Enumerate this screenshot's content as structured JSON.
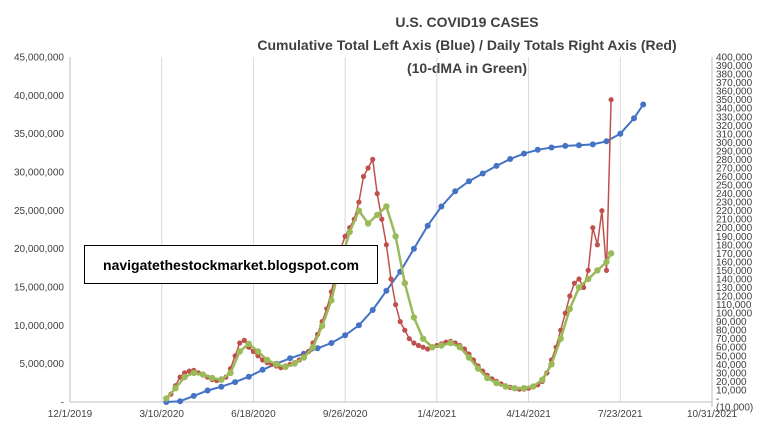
{
  "chart_data": {
    "type": "line",
    "title": "U.S. COVID19 CASES",
    "subtitle": "Cumulative Total Left Axis (Blue) / Daily Totals Right Axis (Red)",
    "subtitle2": "(10-dMA in Green)",
    "watermark": "navigatethestockmarket.blogspot.com",
    "x_ticks": [
      "12/1/2019",
      "3/10/2020",
      "6/18/2020",
      "9/26/2020",
      "1/4/2021",
      "4/14/2021",
      "7/23/2021",
      "10/31/2021"
    ],
    "y_left_ticks": [
      "-",
      "5,000,000",
      "10,000,000",
      "15,000,000",
      "20,000,000",
      "25,000,000",
      "30,000,000",
      "35,000,000",
      "40,000,000",
      "45,000,000"
    ],
    "y_right_ticks": [
      "(10,000)",
      "-",
      "10,000",
      "20,000",
      "30,000",
      "40,000",
      "50,000",
      "60,000",
      "70,000",
      "80,000",
      "90,000",
      "100,000",
      "110,000",
      "120,000",
      "130,000",
      "140,000",
      "150,000",
      "160,000",
      "170,000",
      "180,000",
      "190,000",
      "200,000",
      "210,000",
      "220,000",
      "230,000",
      "240,000",
      "250,000",
      "260,000",
      "270,000",
      "280,000",
      "290,000",
      "300,000",
      "310,000",
      "320,000",
      "330,000",
      "340,000",
      "350,000",
      "360,000",
      "370,000",
      "380,000",
      "390,000",
      "400,000"
    ],
    "ylim_left": [
      0,
      45000000
    ],
    "ylim_right": [
      -10000,
      400000
    ],
    "x_range_days": [
      0,
      700
    ],
    "grid": "vertical",
    "series": [
      {
        "color": "#4472C4",
        "axis": "left",
        "points": [
          [
            105,
            0
          ],
          [
            120,
            100000
          ],
          [
            135,
            800000
          ],
          [
            150,
            1500000
          ],
          [
            165,
            2000000
          ],
          [
            180,
            2600000
          ],
          [
            195,
            3300000
          ],
          [
            210,
            4200000
          ],
          [
            225,
            5000000
          ],
          [
            240,
            5700000
          ],
          [
            255,
            6300000
          ],
          [
            270,
            7000000
          ],
          [
            285,
            7700000
          ],
          [
            300,
            8700000
          ],
          [
            315,
            10000000
          ],
          [
            330,
            12000000
          ],
          [
            345,
            14500000
          ],
          [
            360,
            17000000
          ],
          [
            375,
            20000000
          ],
          [
            390,
            23000000
          ],
          [
            405,
            25500000
          ],
          [
            420,
            27500000
          ],
          [
            435,
            28800000
          ],
          [
            450,
            29800000
          ],
          [
            465,
            30800000
          ],
          [
            480,
            31700000
          ],
          [
            495,
            32400000
          ],
          [
            510,
            32900000
          ],
          [
            525,
            33200000
          ],
          [
            540,
            33400000
          ],
          [
            555,
            33500000
          ],
          [
            570,
            33600000
          ],
          [
            585,
            34000000
          ],
          [
            600,
            35000000
          ],
          [
            615,
            37000000
          ],
          [
            625,
            38800000
          ]
        ]
      },
      {
        "color": "#C0504D",
        "axis": "right",
        "points": [
          [
            105,
            0
          ],
          [
            110,
            5000
          ],
          [
            115,
            15000
          ],
          [
            120,
            25000
          ],
          [
            125,
            30000
          ],
          [
            130,
            32000
          ],
          [
            135,
            33000
          ],
          [
            140,
            30000
          ],
          [
            145,
            28000
          ],
          [
            150,
            25000
          ],
          [
            155,
            22000
          ],
          [
            160,
            21000
          ],
          [
            165,
            23000
          ],
          [
            170,
            25000
          ],
          [
            175,
            35000
          ],
          [
            180,
            50000
          ],
          [
            185,
            65000
          ],
          [
            190,
            68000
          ],
          [
            195,
            60000
          ],
          [
            200,
            55000
          ],
          [
            205,
            50000
          ],
          [
            210,
            45000
          ],
          [
            215,
            42000
          ],
          [
            220,
            40000
          ],
          [
            225,
            38000
          ],
          [
            230,
            36000
          ],
          [
            235,
            38000
          ],
          [
            240,
            40000
          ],
          [
            245,
            42000
          ],
          [
            250,
            45000
          ],
          [
            255,
            50000
          ],
          [
            260,
            55000
          ],
          [
            265,
            65000
          ],
          [
            270,
            75000
          ],
          [
            275,
            90000
          ],
          [
            280,
            105000
          ],
          [
            285,
            125000
          ],
          [
            290,
            150000
          ],
          [
            295,
            175000
          ],
          [
            300,
            190000
          ],
          [
            305,
            200000
          ],
          [
            310,
            210000
          ],
          [
            315,
            230000
          ],
          [
            320,
            260000
          ],
          [
            325,
            270000
          ],
          [
            330,
            280000
          ],
          [
            335,
            240000
          ],
          [
            340,
            210000
          ],
          [
            345,
            180000
          ],
          [
            350,
            140000
          ],
          [
            355,
            110000
          ],
          [
            360,
            90000
          ],
          [
            365,
            80000
          ],
          [
            370,
            70000
          ],
          [
            375,
            65000
          ],
          [
            380,
            62000
          ],
          [
            385,
            60000
          ],
          [
            390,
            58000
          ],
          [
            395,
            60000
          ],
          [
            400,
            62000
          ],
          [
            405,
            64000
          ],
          [
            410,
            66000
          ],
          [
            415,
            67000
          ],
          [
            420,
            65000
          ],
          [
            425,
            62000
          ],
          [
            430,
            58000
          ],
          [
            435,
            52000
          ],
          [
            440,
            45000
          ],
          [
            445,
            38000
          ],
          [
            450,
            32000
          ],
          [
            455,
            27000
          ],
          [
            460,
            23000
          ],
          [
            465,
            20000
          ],
          [
            470,
            17000
          ],
          [
            475,
            15000
          ],
          [
            480,
            13000
          ],
          [
            485,
            12000
          ],
          [
            490,
            11000
          ],
          [
            495,
            11000
          ],
          [
            500,
            12000
          ],
          [
            505,
            14000
          ],
          [
            510,
            16000
          ],
          [
            515,
            20000
          ],
          [
            520,
            30000
          ],
          [
            525,
            45000
          ],
          [
            530,
            60000
          ],
          [
            535,
            80000
          ],
          [
            540,
            100000
          ],
          [
            545,
            120000
          ],
          [
            550,
            135000
          ],
          [
            555,
            140000
          ],
          [
            560,
            130000
          ],
          [
            565,
            150000
          ],
          [
            570,
            200000
          ],
          [
            575,
            180000
          ],
          [
            580,
            220000
          ],
          [
            585,
            150000
          ],
          [
            590,
            350000
          ]
        ]
      },
      {
        "color": "#9BBB59",
        "axis": "right",
        "points": [
          [
            105,
            0
          ],
          [
            115,
            12000
          ],
          [
            125,
            25000
          ],
          [
            135,
            30000
          ],
          [
            145,
            28000
          ],
          [
            155,
            24000
          ],
          [
            165,
            22000
          ],
          [
            175,
            30000
          ],
          [
            185,
            55000
          ],
          [
            195,
            64000
          ],
          [
            205,
            55000
          ],
          [
            215,
            45000
          ],
          [
            225,
            40000
          ],
          [
            235,
            37000
          ],
          [
            245,
            41000
          ],
          [
            255,
            48000
          ],
          [
            265,
            60000
          ],
          [
            275,
            85000
          ],
          [
            285,
            115000
          ],
          [
            295,
            160000
          ],
          [
            305,
            195000
          ],
          [
            315,
            220000
          ],
          [
            325,
            205000
          ],
          [
            335,
            215000
          ],
          [
            345,
            225000
          ],
          [
            355,
            190000
          ],
          [
            365,
            135000
          ],
          [
            375,
            95000
          ],
          [
            385,
            70000
          ],
          [
            395,
            60000
          ],
          [
            405,
            62000
          ],
          [
            415,
            65000
          ],
          [
            425,
            60000
          ],
          [
            435,
            48000
          ],
          [
            445,
            35000
          ],
          [
            455,
            24000
          ],
          [
            465,
            18000
          ],
          [
            475,
            14000
          ],
          [
            485,
            12000
          ],
          [
            495,
            12000
          ],
          [
            505,
            14000
          ],
          [
            515,
            22000
          ],
          [
            525,
            40000
          ],
          [
            535,
            70000
          ],
          [
            545,
            105000
          ],
          [
            555,
            130000
          ],
          [
            565,
            140000
          ],
          [
            575,
            150000
          ],
          [
            585,
            160000
          ],
          [
            590,
            170000
          ]
        ]
      }
    ]
  }
}
